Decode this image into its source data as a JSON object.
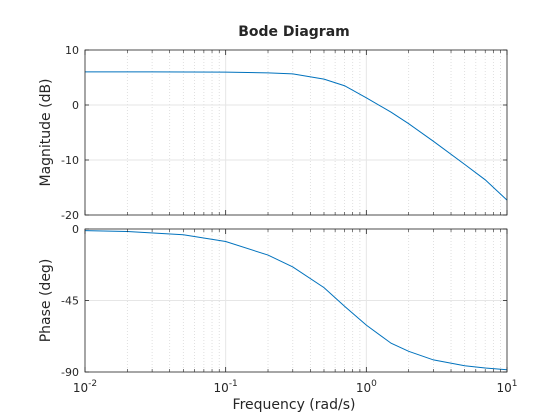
{
  "chart_data": {
    "type": "line",
    "title": "Bode Diagram",
    "xlabel": "Frequency  (rad/s)",
    "x_scale": "log",
    "xlim": [
      0.01,
      10
    ],
    "grid": true,
    "line_color": "#0072BD",
    "x_ticks": [
      {
        "base": "10",
        "exp": "-2"
      },
      {
        "base": "10",
        "exp": "-1"
      },
      {
        "base": "10",
        "exp": "0"
      },
      {
        "base": "10",
        "exp": "1"
      }
    ],
    "panels": [
      {
        "name": "magnitude",
        "ylabel": "Magnitude (dB)",
        "ylim": [
          -20,
          10
        ],
        "yticks": [
          -20,
          -10,
          0,
          10
        ],
        "x": [
          0.01,
          0.03,
          0.1,
          0.2,
          0.3,
          0.5,
          0.7,
          1.0,
          1.5,
          2.0,
          3.0,
          5.0,
          7.0,
          10.0
        ],
        "y": [
          6.02,
          6.02,
          5.98,
          5.85,
          5.65,
          4.7,
          3.5,
          1.3,
          -1.3,
          -3.4,
          -6.6,
          -10.8,
          -13.6,
          -17.3
        ]
      },
      {
        "name": "phase",
        "ylabel": "Phase (deg)",
        "ylim": [
          -90,
          0
        ],
        "yticks": [
          -90,
          -45,
          0
        ],
        "x": [
          0.01,
          0.02,
          0.05,
          0.1,
          0.2,
          0.3,
          0.5,
          0.7,
          1.0,
          1.5,
          2.0,
          3.0,
          5.0,
          7.0,
          10.0
        ],
        "y": [
          -1.0,
          -1.6,
          -3.6,
          -7.9,
          -16.4,
          -23.9,
          -36.9,
          -48.6,
          -60.5,
          -71.9,
          -77.0,
          -82.4,
          -86.1,
          -87.5,
          -88.6
        ]
      }
    ]
  }
}
